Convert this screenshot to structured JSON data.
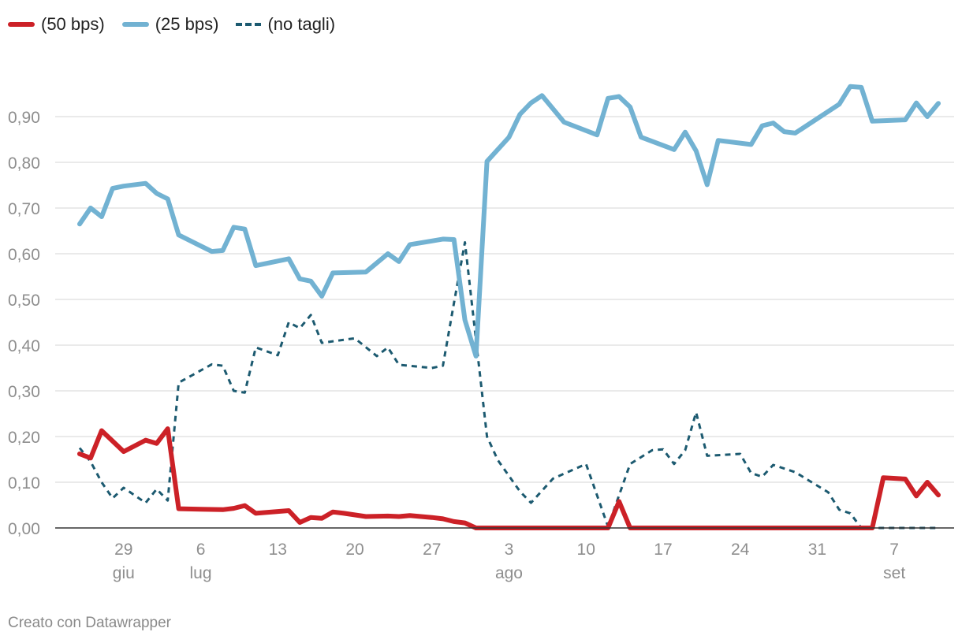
{
  "chart_data": {
    "type": "line",
    "ylim": [
      0,
      1
    ],
    "y_ticks": [
      "0,00",
      "0,10",
      "0,20",
      "0,30",
      "0,40",
      "0,50",
      "0,60",
      "0,70",
      "0,80",
      "0,90"
    ],
    "y_tick_values": [
      0,
      0.1,
      0.2,
      0.3,
      0.4,
      0.5,
      0.6,
      0.7,
      0.8,
      0.9
    ],
    "x_range": [
      "2024-06-24",
      "2024-09-11"
    ],
    "x_ticks": [
      {
        "date": "2024-06-29",
        "day": "29",
        "month": "giu"
      },
      {
        "date": "2024-07-06",
        "day": "6",
        "month": "lug"
      },
      {
        "date": "2024-07-13",
        "day": "13",
        "month": ""
      },
      {
        "date": "2024-07-20",
        "day": "20",
        "month": ""
      },
      {
        "date": "2024-07-27",
        "day": "27",
        "month": ""
      },
      {
        "date": "2024-08-03",
        "day": "3",
        "month": "ago"
      },
      {
        "date": "2024-08-10",
        "day": "10",
        "month": ""
      },
      {
        "date": "2024-08-17",
        "day": "17",
        "month": ""
      },
      {
        "date": "2024-08-24",
        "day": "24",
        "month": ""
      },
      {
        "date": "2024-08-31",
        "day": "31",
        "month": ""
      },
      {
        "date": "2024-09-07",
        "day": "7",
        "month": "set"
      }
    ],
    "grid": true,
    "legend_position": "top-left",
    "series": [
      {
        "name": "(50 bps)",
        "color": "#cc2127",
        "style": "solid",
        "points": [
          [
            "2024-06-25",
            0.162
          ],
          [
            "2024-06-26",
            0.153
          ],
          [
            "2024-06-27",
            0.213
          ],
          [
            "2024-06-29",
            0.167
          ],
          [
            "2024-07-01",
            0.192
          ],
          [
            "2024-07-02",
            0.185
          ],
          [
            "2024-07-03",
            0.217
          ],
          [
            "2024-07-04",
            0.042
          ],
          [
            "2024-07-06",
            0.041
          ],
          [
            "2024-07-08",
            0.04
          ],
          [
            "2024-07-09",
            0.043
          ],
          [
            "2024-07-10",
            0.049
          ],
          [
            "2024-07-11",
            0.032
          ],
          [
            "2024-07-12",
            0.034
          ],
          [
            "2024-07-14",
            0.038
          ],
          [
            "2024-07-15",
            0.012
          ],
          [
            "2024-07-16",
            0.023
          ],
          [
            "2024-07-17",
            0.021
          ],
          [
            "2024-07-18",
            0.035
          ],
          [
            "2024-07-19",
            0.032
          ],
          [
            "2024-07-21",
            0.025
          ],
          [
            "2024-07-23",
            0.026
          ],
          [
            "2024-07-24",
            0.025
          ],
          [
            "2024-07-25",
            0.027
          ],
          [
            "2024-07-27",
            0.023
          ],
          [
            "2024-07-28",
            0.02
          ],
          [
            "2024-07-29",
            0.014
          ],
          [
            "2024-07-30",
            0.011
          ],
          [
            "2024-07-31",
            0.0
          ],
          [
            "2024-08-01",
            0.0
          ],
          [
            "2024-08-12",
            0.0
          ],
          [
            "2024-08-13",
            0.058
          ],
          [
            "2024-08-14",
            0.0
          ],
          [
            "2024-09-05",
            0.0
          ],
          [
            "2024-09-06",
            0.11
          ],
          [
            "2024-09-08",
            0.107
          ],
          [
            "2024-09-09",
            0.07
          ],
          [
            "2024-09-10",
            0.1
          ],
          [
            "2024-09-11",
            0.072
          ]
        ]
      },
      {
        "name": "(25 bps)",
        "color": "#72b2d2",
        "style": "solid",
        "points": [
          [
            "2024-06-25",
            0.665
          ],
          [
            "2024-06-26",
            0.7
          ],
          [
            "2024-06-27",
            0.681
          ],
          [
            "2024-06-28",
            0.743
          ],
          [
            "2024-06-29",
            0.748
          ],
          [
            "2024-07-01",
            0.754
          ],
          [
            "2024-07-02",
            0.732
          ],
          [
            "2024-07-03",
            0.72
          ],
          [
            "2024-07-04",
            0.641
          ],
          [
            "2024-07-07",
            0.605
          ],
          [
            "2024-07-08",
            0.607
          ],
          [
            "2024-07-09",
            0.658
          ],
          [
            "2024-07-10",
            0.654
          ],
          [
            "2024-07-11",
            0.574
          ],
          [
            "2024-07-14",
            0.589
          ],
          [
            "2024-07-15",
            0.545
          ],
          [
            "2024-07-16",
            0.54
          ],
          [
            "2024-07-17",
            0.507
          ],
          [
            "2024-07-18",
            0.558
          ],
          [
            "2024-07-21",
            0.56
          ],
          [
            "2024-07-23",
            0.6
          ],
          [
            "2024-07-24",
            0.583
          ],
          [
            "2024-07-25",
            0.62
          ],
          [
            "2024-07-27",
            0.628
          ],
          [
            "2024-07-28",
            0.632
          ],
          [
            "2024-07-29",
            0.631
          ],
          [
            "2024-07-30",
            0.455
          ],
          [
            "2024-07-31",
            0.376
          ],
          [
            "2024-08-01",
            0.802
          ],
          [
            "2024-08-03",
            0.855
          ],
          [
            "2024-08-04",
            0.905
          ],
          [
            "2024-08-05",
            0.93
          ],
          [
            "2024-08-06",
            0.946
          ],
          [
            "2024-08-08",
            0.888
          ],
          [
            "2024-08-11",
            0.86
          ],
          [
            "2024-08-12",
            0.94
          ],
          [
            "2024-08-13",
            0.944
          ],
          [
            "2024-08-14",
            0.921
          ],
          [
            "2024-08-15",
            0.855
          ],
          [
            "2024-08-18",
            0.828
          ],
          [
            "2024-08-19",
            0.866
          ],
          [
            "2024-08-20",
            0.825
          ],
          [
            "2024-08-21",
            0.751
          ],
          [
            "2024-08-22",
            0.848
          ],
          [
            "2024-08-25",
            0.839
          ],
          [
            "2024-08-26",
            0.88
          ],
          [
            "2024-08-27",
            0.886
          ],
          [
            "2024-08-28",
            0.867
          ],
          [
            "2024-08-29",
            0.864
          ],
          [
            "2024-09-02",
            0.927
          ],
          [
            "2024-09-03",
            0.966
          ],
          [
            "2024-09-04",
            0.964
          ],
          [
            "2024-09-05",
            0.89
          ],
          [
            "2024-09-07",
            0.892
          ],
          [
            "2024-09-08",
            0.893
          ],
          [
            "2024-09-09",
            0.93
          ],
          [
            "2024-09-10",
            0.9
          ],
          [
            "2024-09-11",
            0.929
          ]
        ]
      },
      {
        "name": "(no tagli)",
        "color": "#1c5a70",
        "style": "dashed",
        "points": [
          [
            "2024-06-25",
            0.175
          ],
          [
            "2024-06-26",
            0.145
          ],
          [
            "2024-06-27",
            0.1
          ],
          [
            "2024-06-28",
            0.065
          ],
          [
            "2024-06-29",
            0.088
          ],
          [
            "2024-07-01",
            0.055
          ],
          [
            "2024-07-02",
            0.085
          ],
          [
            "2024-07-03",
            0.06
          ],
          [
            "2024-07-04",
            0.318
          ],
          [
            "2024-07-07",
            0.358
          ],
          [
            "2024-07-08",
            0.355
          ],
          [
            "2024-07-09",
            0.3
          ],
          [
            "2024-07-10",
            0.296
          ],
          [
            "2024-07-11",
            0.395
          ],
          [
            "2024-07-13",
            0.378
          ],
          [
            "2024-07-14",
            0.45
          ],
          [
            "2024-07-15",
            0.437
          ],
          [
            "2024-07-16",
            0.466
          ],
          [
            "2024-07-17",
            0.405
          ],
          [
            "2024-07-20",
            0.415
          ],
          [
            "2024-07-22",
            0.376
          ],
          [
            "2024-07-23",
            0.395
          ],
          [
            "2024-07-24",
            0.357
          ],
          [
            "2024-07-27",
            0.35
          ],
          [
            "2024-07-28",
            0.355
          ],
          [
            "2024-07-29",
            0.492
          ],
          [
            "2024-07-30",
            0.625
          ],
          [
            "2024-08-01",
            0.2
          ],
          [
            "2024-08-02",
            0.148
          ],
          [
            "2024-08-04",
            0.08
          ],
          [
            "2024-08-05",
            0.055
          ],
          [
            "2024-08-07",
            0.108
          ],
          [
            "2024-08-10",
            0.14
          ],
          [
            "2024-08-12",
            0.003
          ],
          [
            "2024-08-14",
            0.14
          ],
          [
            "2024-08-16",
            0.17
          ],
          [
            "2024-08-17",
            0.172
          ],
          [
            "2024-08-18",
            0.14
          ],
          [
            "2024-08-19",
            0.17
          ],
          [
            "2024-08-20",
            0.253
          ],
          [
            "2024-08-21",
            0.158
          ],
          [
            "2024-08-24",
            0.162
          ],
          [
            "2024-08-25",
            0.12
          ],
          [
            "2024-08-26",
            0.112
          ],
          [
            "2024-08-27",
            0.138
          ],
          [
            "2024-08-29",
            0.122
          ],
          [
            "2024-09-01",
            0.078
          ],
          [
            "2024-09-02",
            0.04
          ],
          [
            "2024-09-03",
            0.032
          ],
          [
            "2024-09-04",
            0.0
          ],
          [
            "2024-09-11",
            0.0
          ]
        ]
      }
    ]
  },
  "footer": {
    "credit": "Creato con Datawrapper"
  }
}
